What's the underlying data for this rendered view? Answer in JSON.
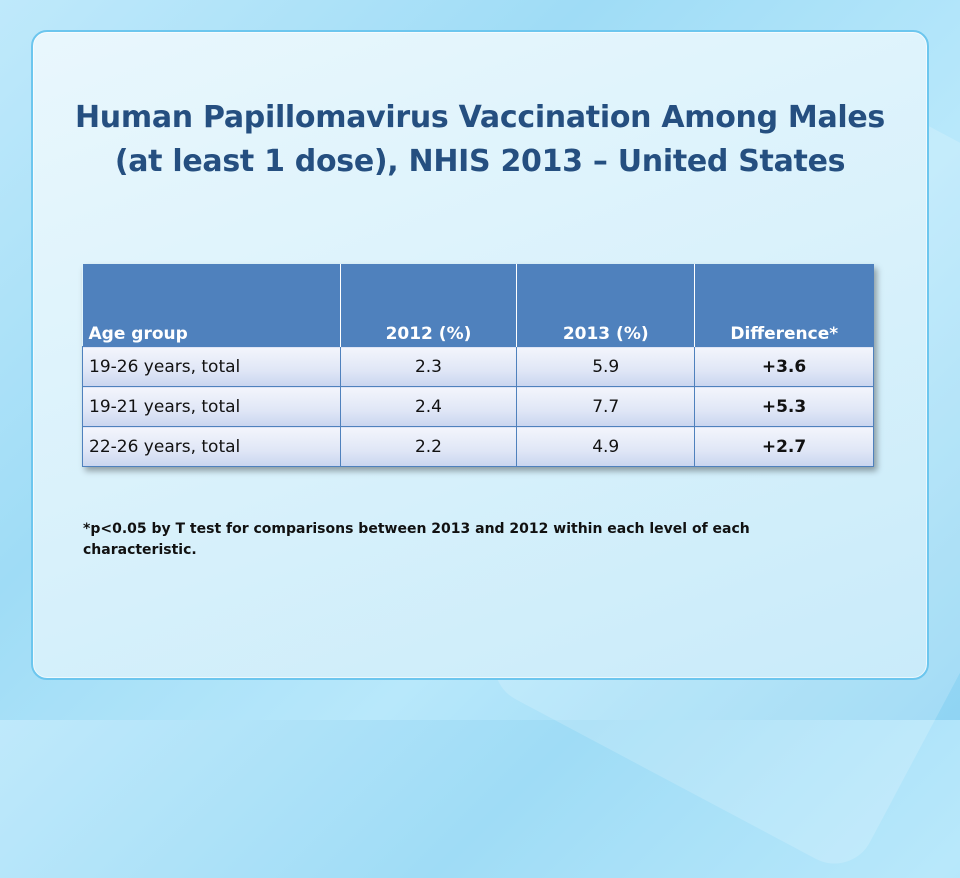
{
  "slide": {
    "title_line1": "Human Papillomavirus Vaccination Among Males",
    "title_line2": "(at least 1 dose), NHIS 2013 – United States",
    "footnote_line1": "*p<0.05 by T test for comparisons between 2013 and 2012 within each level of each",
    "footnote_line2": "characteristic."
  },
  "table": {
    "headers": [
      "Age group",
      "2012 (%)",
      "2013 (%)",
      "Difference*"
    ],
    "rows": [
      [
        "19-26 years, total",
        "2.3",
        "5.9",
        "+3.6"
      ],
      [
        "19-21 years, total",
        "2.4",
        "7.7",
        "+5.3"
      ],
      [
        "22-26 years, total",
        "2.2",
        "4.9",
        "+2.7"
      ]
    ]
  },
  "colors": {
    "title": "#254f80",
    "header_background": "#4f81bd",
    "card_border": "#6cc6ee"
  }
}
